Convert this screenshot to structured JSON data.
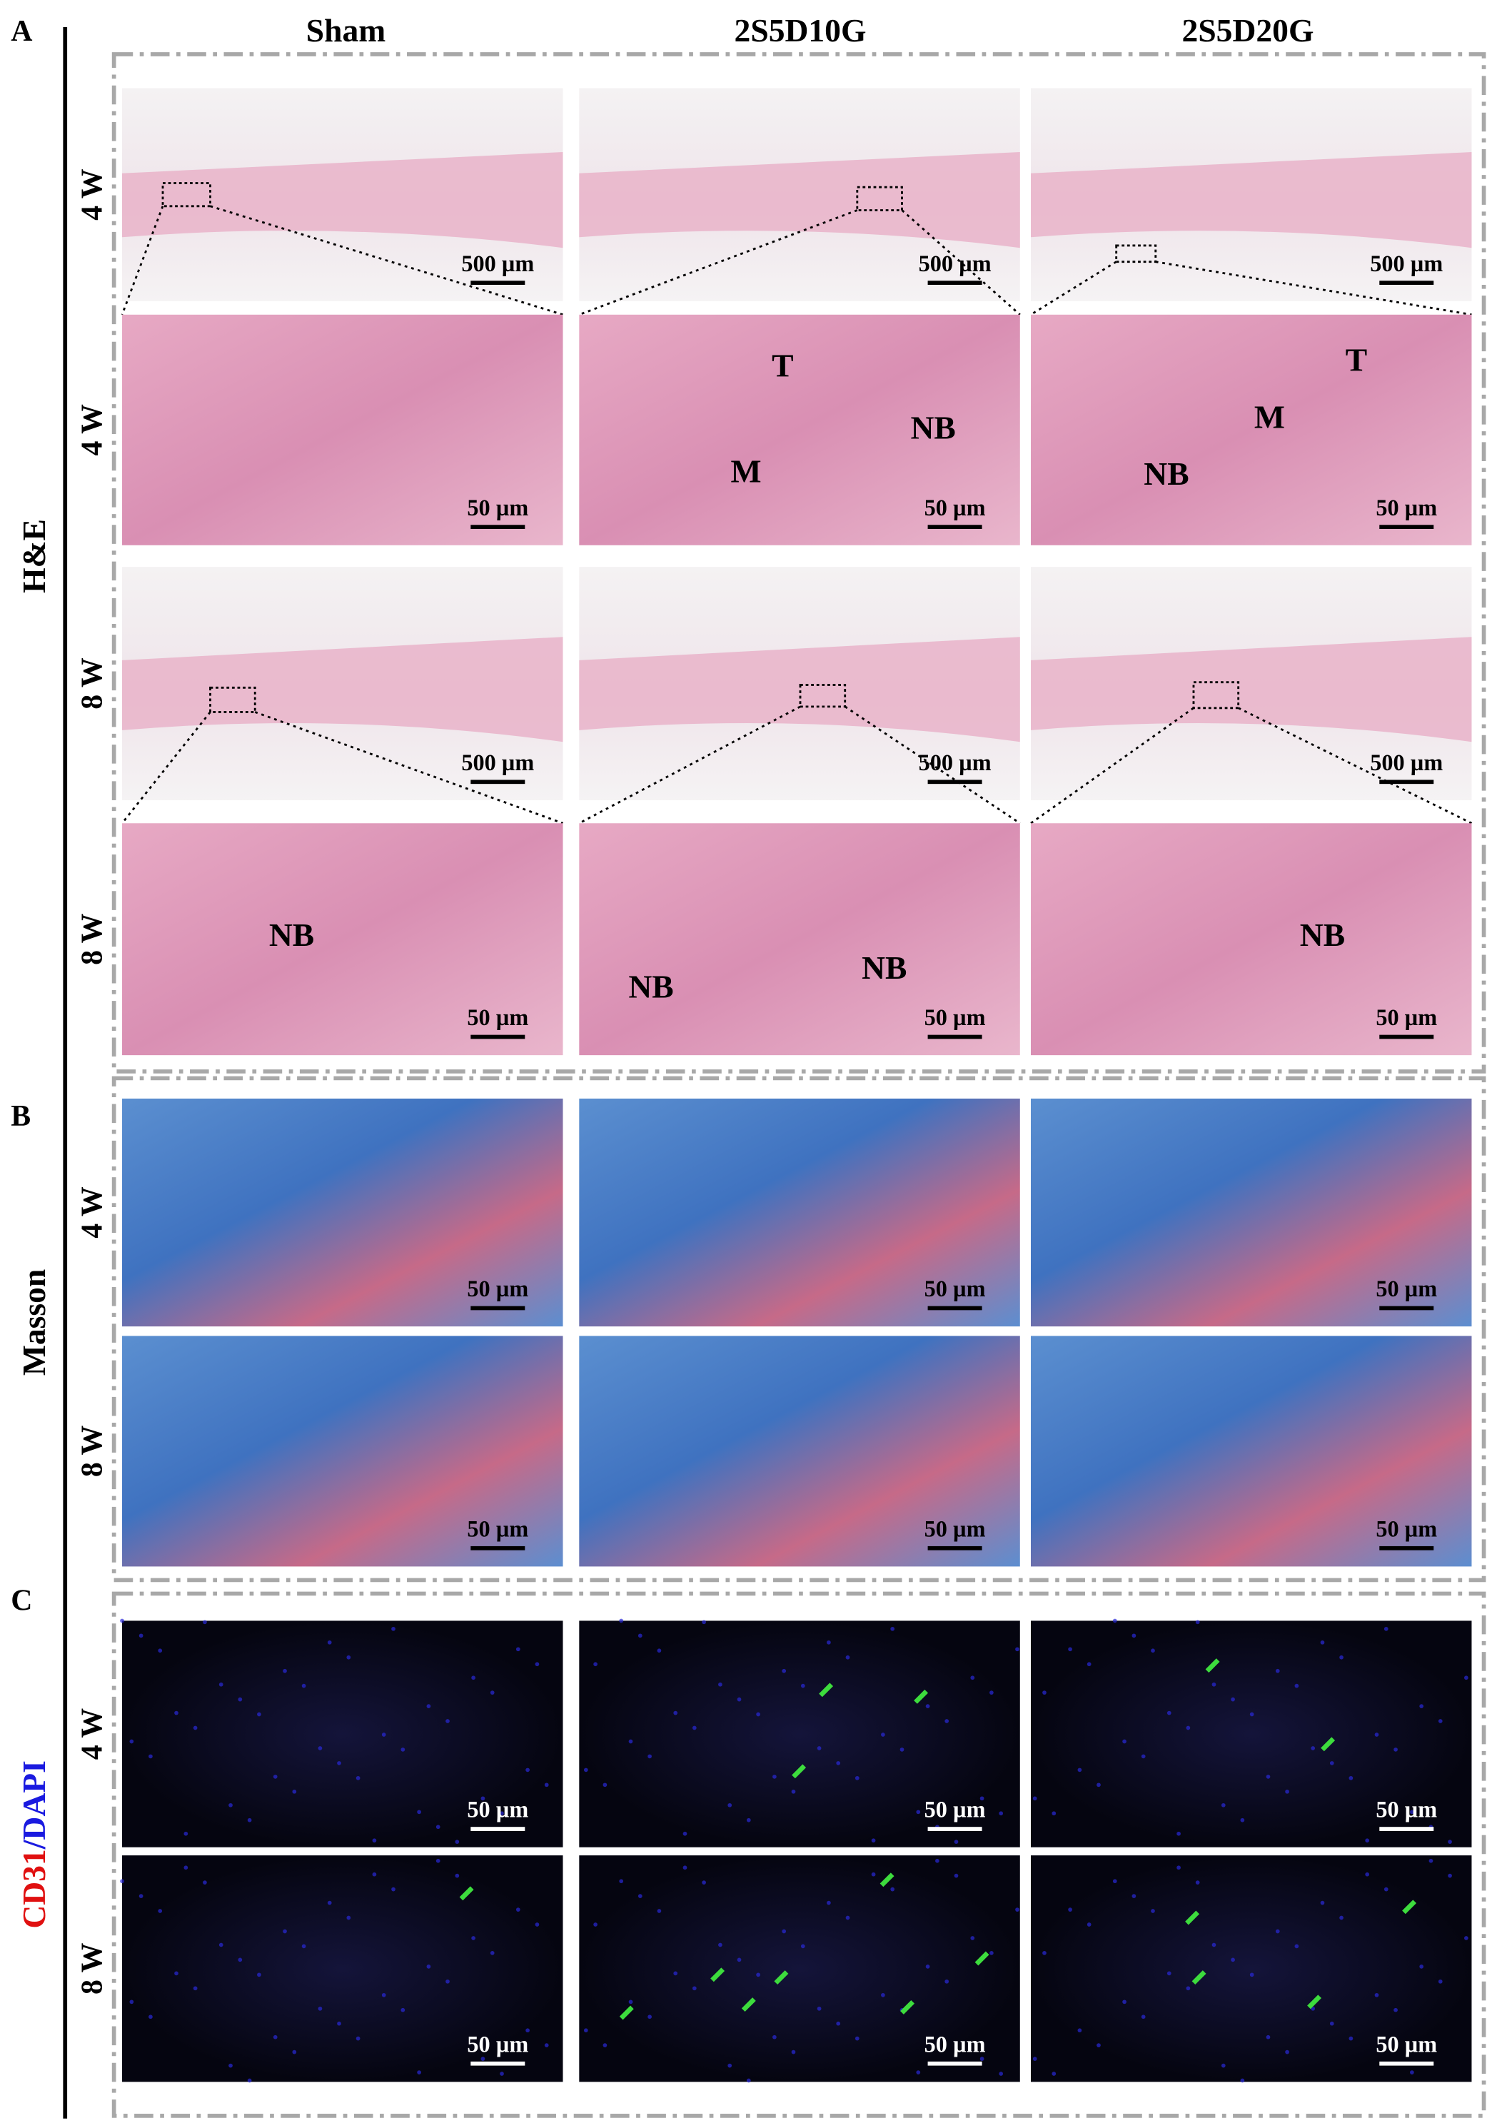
{
  "columns": [
    "Sham",
    "2S5D10G",
    "2S5D20G"
  ],
  "panels": [
    {
      "label": "A",
      "stain": [
        "H&E"
      ],
      "rows": [
        {
          "time": "4 W",
          "cells": [
            {
              "scale": "500 µm"
            },
            {
              "scale": "500 µm"
            },
            {
              "scale": "500 µm"
            }
          ]
        },
        {
          "time": "4 W",
          "cells": [
            {
              "scale": "50 µm"
            },
            {
              "scale": "50 µm",
              "annotations": [
                "T",
                "NB",
                "M"
              ]
            },
            {
              "scale": "50 µm",
              "annotations": [
                "M",
                "T",
                "NB"
              ]
            }
          ]
        },
        {
          "time": "8 W",
          "cells": [
            {
              "scale": "500 µm"
            },
            {
              "scale": "500 µm"
            },
            {
              "scale": "500 µm"
            }
          ]
        },
        {
          "time": "8 W",
          "cells": [
            {
              "scale": "50 µm",
              "annotations": [
                "NB"
              ]
            },
            {
              "scale": "50 µm",
              "annotations": [
                "NB",
                "NB"
              ]
            },
            {
              "scale": "50 µm",
              "annotations": [
                "NB"
              ]
            }
          ]
        }
      ]
    },
    {
      "label": "B",
      "stain": [
        "Masson"
      ],
      "rows": [
        {
          "time": "4 W",
          "cells": [
            {
              "scale": "50 µm"
            },
            {
              "scale": "50 µm"
            },
            {
              "scale": "50 µm"
            }
          ]
        },
        {
          "time": "8 W",
          "cells": [
            {
              "scale": "50 µm"
            },
            {
              "scale": "50 µm"
            },
            {
              "scale": "50 µm"
            }
          ]
        }
      ]
    },
    {
      "label": "C",
      "stain": [
        "CD31",
        "/DAPI"
      ],
      "rows": [
        {
          "time": "4 W",
          "cells": [
            {
              "scale": "50 µm"
            },
            {
              "scale": "50 µm"
            },
            {
              "scale": "50 µm"
            }
          ]
        },
        {
          "time": "8 W",
          "cells": [
            {
              "scale": "50 µm"
            },
            {
              "scale": "50 µm"
            },
            {
              "scale": "50 µm"
            }
          ]
        }
      ]
    }
  ]
}
